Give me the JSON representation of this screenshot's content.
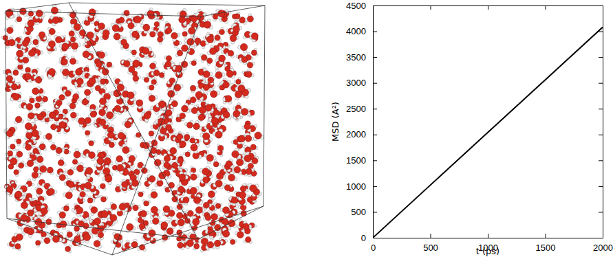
{
  "chart_data": {
    "type": "line",
    "x_label": "t (ps)",
    "y_label": "MSD (A²)",
    "x": [
      0,
      500,
      1000,
      1500,
      2000
    ],
    "values": [
      0,
      1020,
      2040,
      3060,
      4080
    ],
    "color": "#000000",
    "xlim": [
      0,
      2000
    ],
    "xticks": [
      0,
      500,
      1000,
      1500,
      2000
    ],
    "ylim": [
      0,
      4500
    ],
    "yticks": [
      0,
      500,
      1000,
      1500,
      2000,
      2500,
      3000,
      3500,
      4000,
      4500
    ],
    "grid": false
  }
}
